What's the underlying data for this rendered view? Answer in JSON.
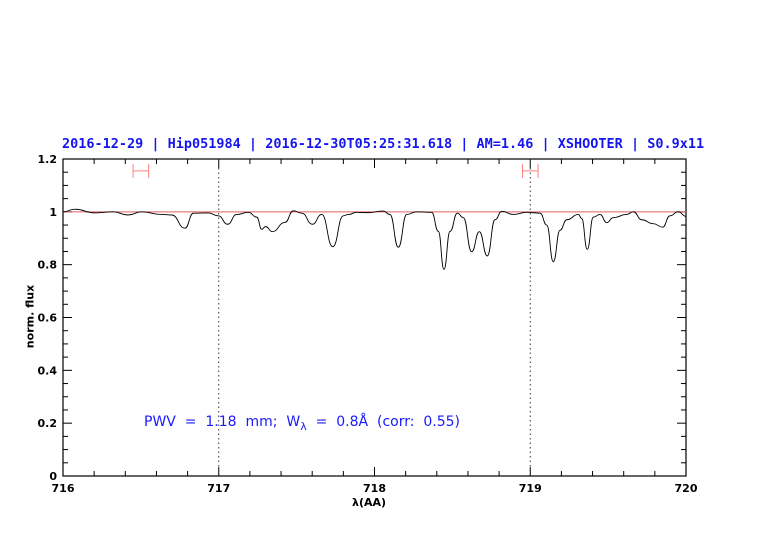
{
  "chart_data": {
    "type": "line",
    "title": "2016-12-29 | Hip051984 | 2016-12-30T05:25:31.618 | AM=1.46 | XSHOOTER | S0.9x11",
    "xlabel": "λ(AA)",
    "ylabel": "norm. flux",
    "xlim": [
      716,
      720
    ],
    "ylim": [
      0,
      1.2
    ],
    "x_ticks": [
      "716",
      "717",
      "718",
      "719",
      "720"
    ],
    "y_ticks": [
      "0",
      "0.2",
      "0.4",
      "0.6",
      "0.8",
      "1",
      "1.2"
    ],
    "annotation": {
      "prefix": "PWV  =  1.18  mm;  W",
      "sub": "λ",
      "suffix": "  =  0.8Å  (corr:  0.55)"
    },
    "reference_line": {
      "y": 1.0,
      "color": "#e06060"
    },
    "dotted_lines_x": [
      717,
      719
    ],
    "ranges": [
      [
        716.45,
        716.55
      ],
      [
        718.95,
        719.05
      ]
    ],
    "range_y": 1.155,
    "colors": {
      "title": "#1515f0",
      "annotation": "#1a1aff",
      "spectrum": "#000000",
      "ranges": "#ff8080"
    },
    "spectrum": {
      "x": [
        716.0,
        716.077,
        716.205,
        716.323,
        716.417,
        716.505,
        716.634,
        716.698,
        716.783,
        716.837,
        716.933,
        716.997,
        717.057,
        717.115,
        717.19,
        717.244,
        717.276,
        717.301,
        717.344,
        717.425,
        717.479,
        717.533,
        717.601,
        717.661,
        717.732,
        717.8,
        717.832,
        717.886,
        717.96,
        718.056,
        718.099,
        718.153,
        718.207,
        718.271,
        718.367,
        718.41,
        718.446,
        718.485,
        718.532,
        718.57,
        718.624,
        718.673,
        718.724,
        718.774,
        718.817,
        718.891,
        718.977,
        719.063,
        719.106,
        719.148,
        719.191,
        719.234,
        719.309,
        719.33,
        719.366,
        719.405,
        719.448,
        719.491,
        719.533,
        719.619,
        719.662,
        719.716,
        719.79,
        719.85,
        719.897,
        719.95,
        720.0
      ],
      "y": [
        1.0,
        1.01,
        0.996,
        1.0,
        0.988,
        1.0,
        0.99,
        0.988,
        0.938,
        0.995,
        0.996,
        0.985,
        0.953,
        0.99,
        0.998,
        0.98,
        0.934,
        0.944,
        0.925,
        0.96,
        1.004,
        0.995,
        0.953,
        0.99,
        0.868,
        0.985,
        0.99,
        0.998,
        0.997,
        1.003,
        0.99,
        0.866,
        0.99,
        1.0,
        0.998,
        0.926,
        0.782,
        0.926,
        0.995,
        0.978,
        0.849,
        0.925,
        0.833,
        0.97,
        1.002,
        0.99,
        0.998,
        0.995,
        0.95,
        0.811,
        0.93,
        0.97,
        0.99,
        0.975,
        0.858,
        0.98,
        0.99,
        0.959,
        0.978,
        0.99,
        1.0,
        0.97,
        0.955,
        0.942,
        0.985,
        1.0,
        0.983
      ]
    }
  }
}
